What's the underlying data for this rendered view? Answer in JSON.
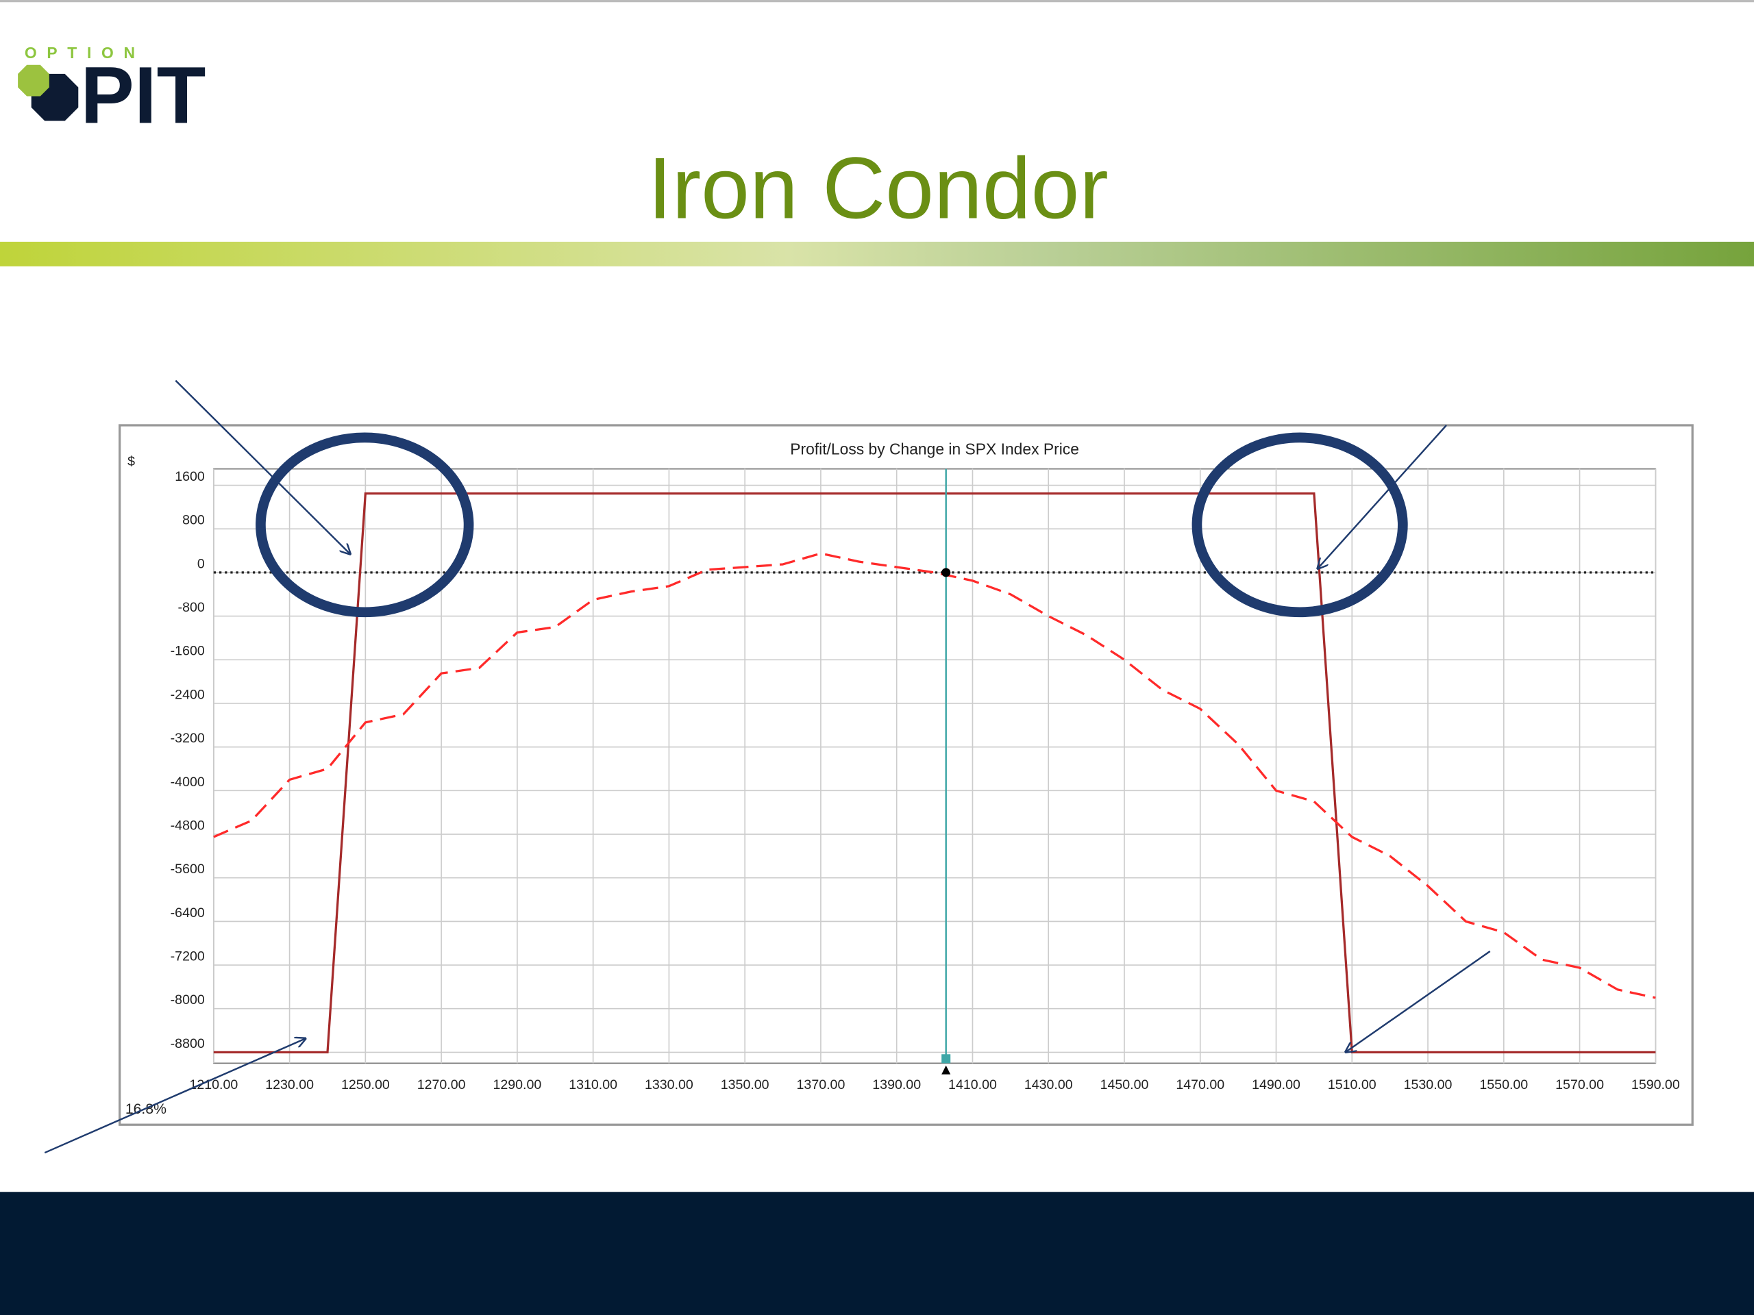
{
  "logo": {
    "top": "OPTION",
    "main": "PIT"
  },
  "title": "Iron Condor",
  "chart_data": {
    "type": "line",
    "title": "Profit/Loss by Change in SPX Index Price",
    "y_label": "$",
    "corner_label": "16.8%",
    "xlim": [
      1210,
      1590
    ],
    "ylim": [
      -9000,
      1900
    ],
    "xticks": [
      {
        "value": 1210,
        "label": "1210.00"
      },
      {
        "value": 1230,
        "label": "1230.00"
      },
      {
        "value": 1250,
        "label": "1250.00"
      },
      {
        "value": 1270,
        "label": "1270.00"
      },
      {
        "value": 1290,
        "label": "1290.00"
      },
      {
        "value": 1310,
        "label": "1310.00"
      },
      {
        "value": 1330,
        "label": "1330.00"
      },
      {
        "value": 1350,
        "label": "1350.00"
      },
      {
        "value": 1370,
        "label": "1370.00"
      },
      {
        "value": 1390,
        "label": "1390.00"
      },
      {
        "value": 1410,
        "label": "1410.00"
      },
      {
        "value": 1430,
        "label": "1430.00"
      },
      {
        "value": 1450,
        "label": "1450.00"
      },
      {
        "value": 1470,
        "label": "1470.00"
      },
      {
        "value": 1490,
        "label": "1490.00"
      },
      {
        "value": 1510,
        "label": "1510.00"
      },
      {
        "value": 1530,
        "label": "1530.00"
      },
      {
        "value": 1550,
        "label": "1550.00"
      },
      {
        "value": 1570,
        "label": "1570.00"
      },
      {
        "value": 1590,
        "label": "1590.00"
      }
    ],
    "yticks": [
      1600,
      800,
      0,
      -800,
      -1600,
      -2400,
      -3200,
      -4000,
      -4800,
      -5600,
      -6400,
      -7200,
      -8000,
      -8800
    ],
    "grid": true,
    "zero_line": "dotted",
    "cursor": {
      "x": 1403,
      "y": 0,
      "color": "#3fa7a7"
    },
    "series": [
      {
        "color": "#a52a2a",
        "dashed": false,
        "x": [
          1210,
          1240,
          1250,
          1500,
          1510,
          1590
        ],
        "values": [
          -8800,
          -8800,
          1450,
          1450,
          -8800,
          -8800
        ]
      },
      {
        "color": "#ff2a2a",
        "dashed": true,
        "x": [
          1210,
          1220,
          1230,
          1240,
          1250,
          1260,
          1270,
          1280,
          1290,
          1300,
          1310,
          1320,
          1330,
          1340,
          1350,
          1360,
          1370,
          1380,
          1390,
          1400,
          1410,
          1420,
          1430,
          1440,
          1450,
          1460,
          1470,
          1480,
          1490,
          1500,
          1510,
          1520,
          1530,
          1540,
          1550,
          1560,
          1570,
          1580,
          1590
        ],
        "values": [
          -4850,
          -4550,
          -3800,
          -3600,
          -2750,
          -2600,
          -1850,
          -1750,
          -1100,
          -1000,
          -500,
          -350,
          -250,
          50,
          100,
          150,
          350,
          200,
          100,
          0,
          -150,
          -400,
          -800,
          -1150,
          -1600,
          -2150,
          -2500,
          -3150,
          -4000,
          -4200,
          -4850,
          -5200,
          -5750,
          -6400,
          -6600,
          -7100,
          -7250,
          -7650,
          -7800
        ]
      }
    ]
  }
}
